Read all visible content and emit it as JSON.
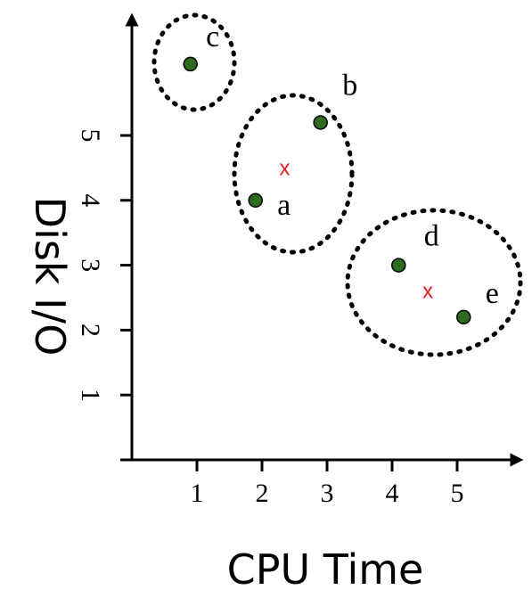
{
  "chart_data": {
    "type": "scatter",
    "title": "",
    "xlabel": "CPU Time",
    "ylabel": "Disk I/O",
    "xlim": [
      0,
      6
    ],
    "ylim": [
      0,
      6.5
    ],
    "x_ticks": [
      "1",
      "2",
      "3",
      "4",
      "5"
    ],
    "y_ticks": [
      "1",
      "2",
      "3",
      "4",
      "5"
    ],
    "grid": false,
    "point_color": "#2e6b1e",
    "centroid_color": "#e31e1e",
    "points": [
      {
        "label": "a",
        "x": 1.9,
        "y": 4.0
      },
      {
        "label": "b",
        "x": 2.9,
        "y": 5.2
      },
      {
        "label": "c",
        "x": 0.9,
        "y": 6.1
      },
      {
        "label": "d",
        "x": 4.1,
        "y": 3.0
      },
      {
        "label": "e",
        "x": 5.1,
        "y": 2.2
      }
    ],
    "centroids": [
      {
        "label": "x",
        "x": 2.35,
        "y": 4.5
      },
      {
        "label": "x",
        "x": 4.55,
        "y": 2.6
      }
    ],
    "clusters": [
      {
        "members": [
          "c"
        ]
      },
      {
        "members": [
          "a",
          "b"
        ]
      },
      {
        "members": [
          "d",
          "e"
        ]
      }
    ]
  }
}
